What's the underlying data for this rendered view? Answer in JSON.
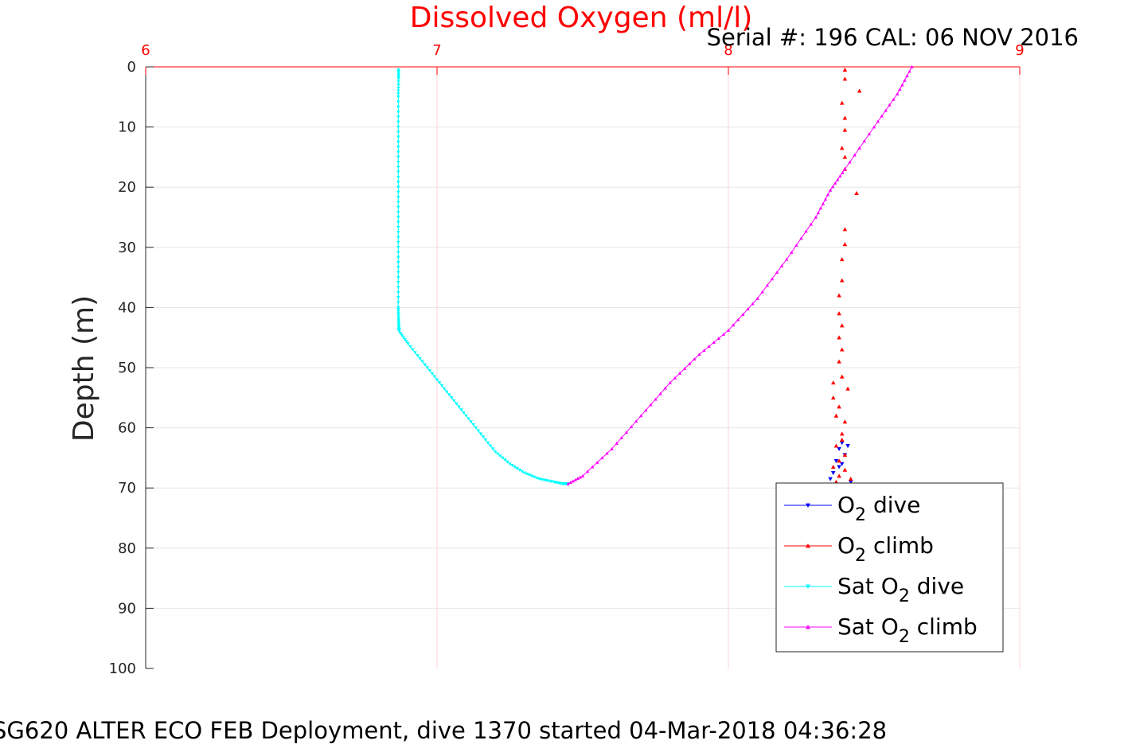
{
  "chart_data": {
    "type": "scatter",
    "title": "Dissolved Oxygen (ml/l)",
    "subtitle": "Serial #: 196  CAL: 06 NOV 2016",
    "caption": "SG620 ALTER ECO FEB Deployment, dive 1370 started 04-Mar-2018 04:36:28",
    "xlabel": "",
    "ylabel": "Depth (m)",
    "xlim": [
      6,
      9
    ],
    "ylim": [
      0,
      100
    ],
    "y_reversed": true,
    "x_axis_position": "top",
    "x_ticks": [
      "6",
      "7",
      "8",
      "9"
    ],
    "y_ticks": [
      "0",
      "10",
      "20",
      "30",
      "40",
      "50",
      "60",
      "70",
      "80",
      "90",
      "100"
    ],
    "grid": true,
    "legend_position": "bottom-right",
    "colors": {
      "title": "#ff0000",
      "x_axis": "#ff0000",
      "grid": "#e6e6e6",
      "x_grid": "#ffd6d6"
    },
    "series": [
      {
        "name": "O2 dive",
        "legend_label": {
          "pre": "O",
          "sub": "2",
          "post": " dive"
        },
        "color": "#0000ff",
        "marker": "triangle-down",
        "line": false,
        "x": [
          8.39,
          8.38,
          8.4,
          8.37,
          8.38,
          8.41,
          8.36,
          8.39,
          8.35,
          8.42
        ],
        "y": [
          62.5,
          63.5,
          64.5,
          65.5,
          66.5,
          63.0,
          67.5,
          66.0,
          68.5,
          69.0
        ]
      },
      {
        "name": "O2 climb",
        "legend_label": {
          "pre": "O",
          "sub": "2",
          "post": " climb"
        },
        "color": "#ff0000",
        "marker": "triangle-up",
        "line": false,
        "x": [
          8.4,
          8.4,
          8.45,
          8.39,
          8.4,
          8.4,
          8.39,
          8.4,
          8.4,
          8.44,
          8.4,
          8.4,
          8.39,
          8.39,
          8.38,
          8.38,
          8.39,
          8.38,
          8.39,
          8.38,
          8.39,
          8.36,
          8.41,
          8.36,
          8.38,
          8.37,
          8.4,
          8.39,
          8.39,
          8.37,
          8.4,
          8.38,
          8.36,
          8.4,
          8.38,
          8.42,
          8.37,
          8.34
        ],
        "y": [
          0.5,
          2.0,
          4.0,
          6.0,
          8.5,
          10.5,
          13.5,
          15.0,
          17.0,
          21.0,
          27.0,
          29.5,
          32.0,
          35.5,
          38.0,
          41.0,
          43.0,
          45.0,
          47.0,
          49.0,
          51.5,
          52.5,
          53.5,
          55.0,
          56.5,
          58.0,
          59.0,
          61.0,
          62.0,
          63.0,
          64.5,
          65.5,
          66.5,
          67.0,
          68.0,
          68.5,
          69.0,
          69.5
        ]
      },
      {
        "name": "Sat O2 dive",
        "legend_label": {
          "pre": "Sat O",
          "sub": "2",
          "post": " dive"
        },
        "color": "#00ffff",
        "marker": "triangle-down",
        "line": true,
        "x": [
          6.868,
          6.868,
          6.867,
          6.867,
          6.867,
          6.867,
          6.867,
          6.867,
          6.867,
          6.867,
          6.868,
          6.869,
          6.87,
          6.9,
          6.95,
          7.0,
          7.05,
          7.1,
          7.15,
          7.2,
          7.25,
          7.3,
          7.35,
          7.4,
          7.43,
          7.45
        ],
        "y": [
          0.5,
          2,
          5,
          10,
          15,
          20,
          25,
          30,
          35,
          40,
          42,
          43.5,
          44,
          46,
          49,
          52,
          55,
          58,
          61,
          64,
          66,
          67.5,
          68.5,
          69.0,
          69.3,
          69.3
        ]
      },
      {
        "name": "Sat O2 climb",
        "legend_label": {
          "pre": "Sat O",
          "sub": "2",
          "post": " climb"
        },
        "color": "#ff00ff",
        "marker": "triangle-up",
        "line": true,
        "x": [
          7.45,
          7.5,
          7.6,
          7.7,
          7.8,
          7.9,
          8.0,
          8.1,
          8.2,
          8.3,
          8.35,
          8.4,
          8.5,
          8.58,
          8.63
        ],
        "y": [
          69.3,
          68.0,
          63.5,
          58.0,
          52.5,
          47.8,
          43.8,
          38.5,
          32.0,
          25.0,
          20.5,
          17.0,
          10.0,
          4.5,
          0.0
        ]
      }
    ]
  }
}
